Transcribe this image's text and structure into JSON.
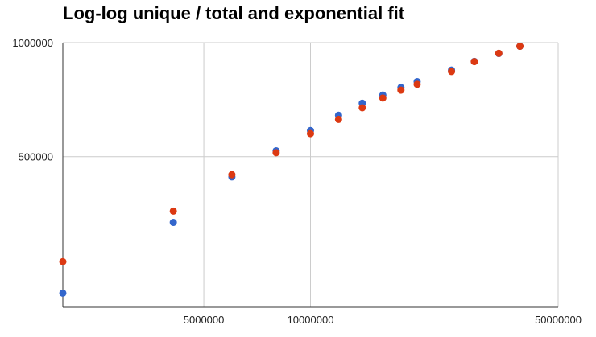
{
  "chart_data": {
    "type": "scatter",
    "title": "Log-log unique / total and exponential fit",
    "xlabel": "",
    "ylabel": "",
    "x_scale": "log",
    "y_scale": "log",
    "xlim": [
      2000000,
      50000000
    ],
    "ylim": [
      200000,
      1000000
    ],
    "x_ticks": [
      {
        "value": 5000000,
        "label": "5000000"
      },
      {
        "value": 10000000,
        "label": "10000000"
      },
      {
        "value": 50000000,
        "label": "50000000"
      }
    ],
    "y_ticks": [
      {
        "value": 500000,
        "label": "500000"
      },
      {
        "value": 1000000,
        "label": "1000000"
      }
    ],
    "grid": true,
    "legend": "none",
    "colors": {
      "actual": "#3366cc",
      "fit": "#dc3912",
      "grid": "#cccccc",
      "axis": "#333333"
    },
    "series": [
      {
        "x": [
          2000000,
          4100000,
          6000000,
          8000000,
          10000000,
          12000000,
          14000000,
          16000000,
          18000000,
          20000000,
          25000000,
          29000000,
          34000000,
          39000000
        ],
        "y": [
          218000,
          335000,
          442000,
          518000,
          586000,
          643000,
          692000,
          727000,
          761000,
          789000,
          846000,
          892000,
          936000,
          978000
        ]
      },
      {
        "x": [
          2000000,
          4100000,
          6000000,
          8000000,
          10000000,
          12000000,
          14000000,
          16000000,
          18000000,
          20000000,
          25000000,
          29000000,
          34000000,
          39000000
        ],
        "y": [
          264000,
          359000,
          448000,
          512000,
          575000,
          627000,
          673000,
          714000,
          749000,
          776000,
          839000,
          891000,
          937000,
          978000
        ]
      }
    ]
  }
}
